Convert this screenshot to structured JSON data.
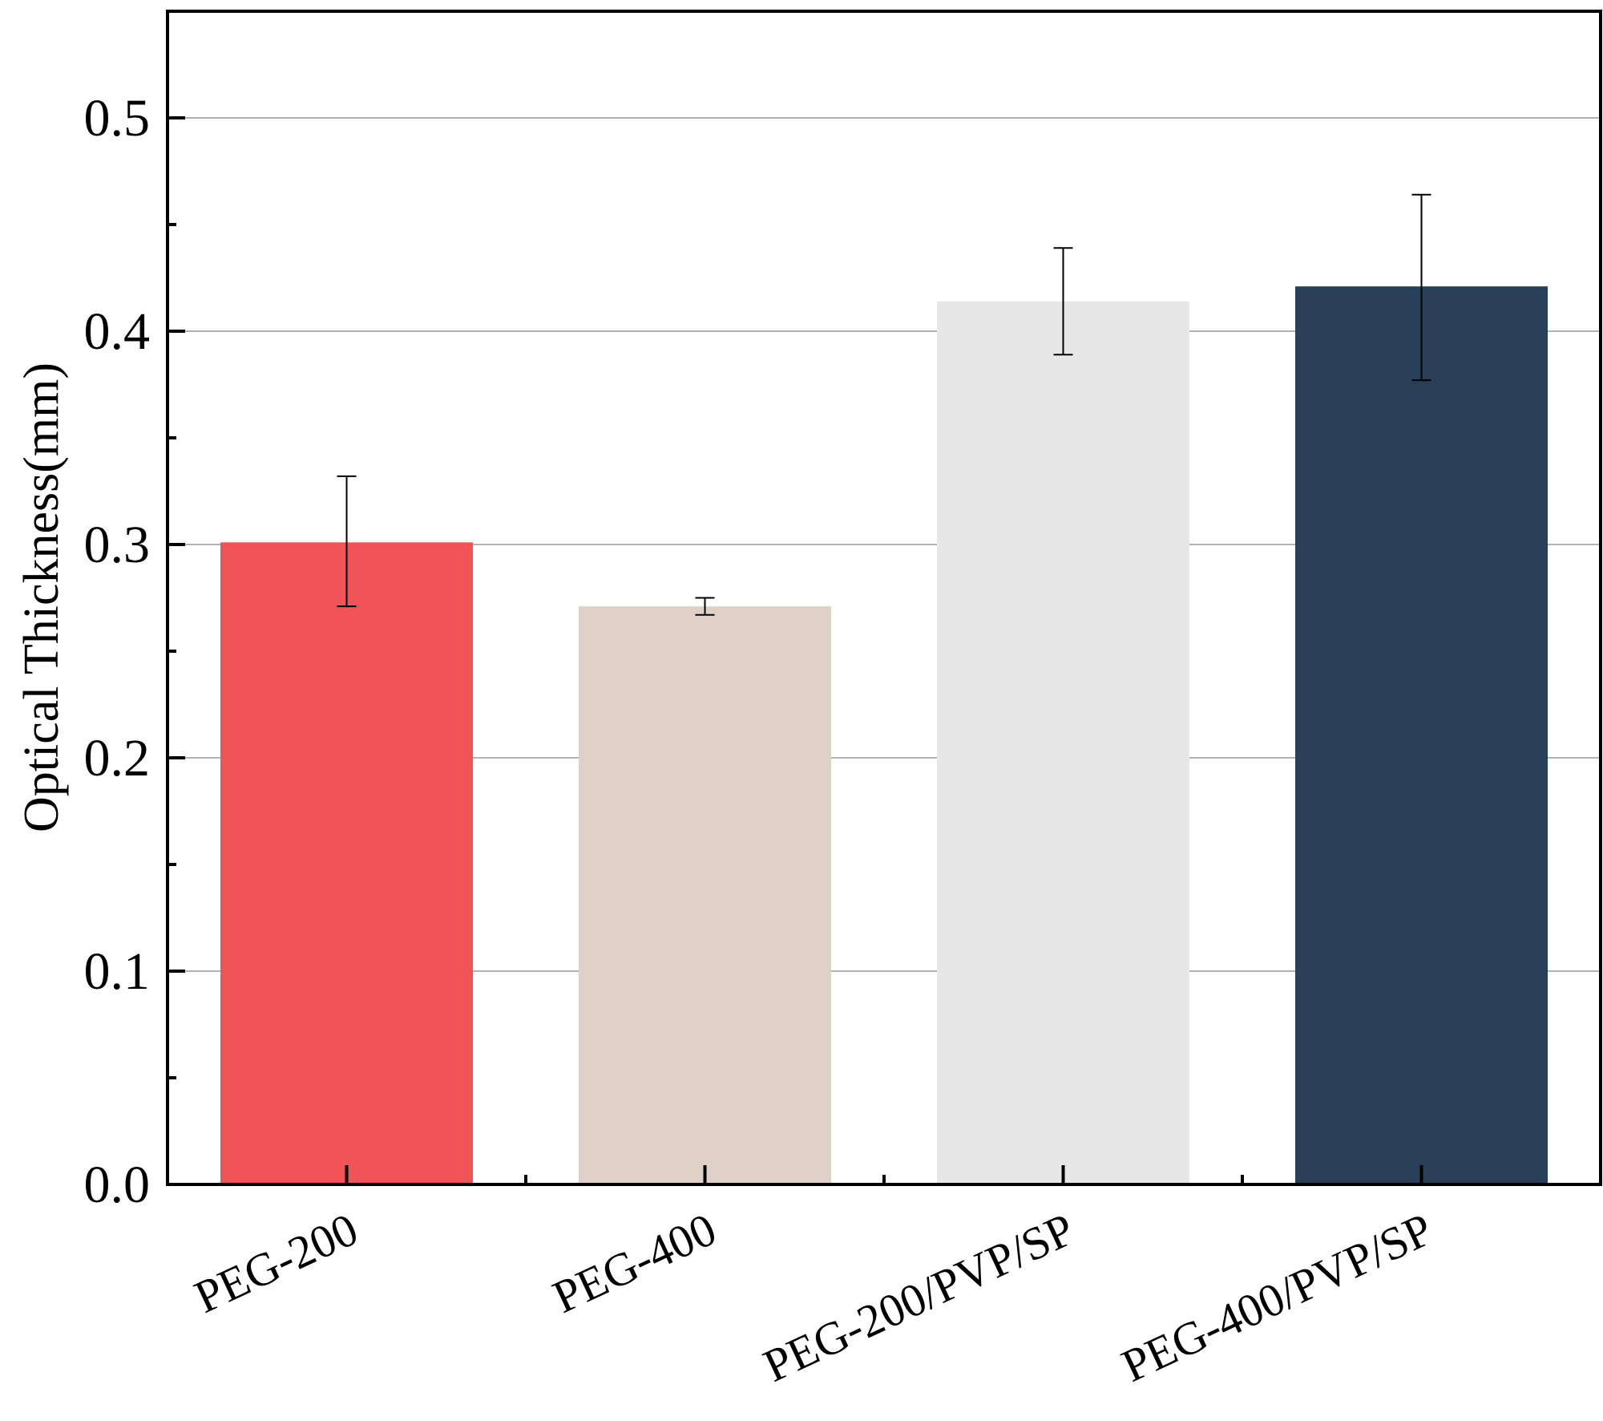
{
  "chart_data": {
    "type": "bar",
    "title": "",
    "xlabel": "",
    "ylabel": "Optical Thickness(mm)",
    "ylim": [
      0,
      0.55
    ],
    "yticks": [
      0.0,
      0.1,
      0.2,
      0.3,
      0.4,
      0.5
    ],
    "ytick_labels": [
      "0.0",
      "0.1",
      "0.2",
      "0.3",
      "0.4",
      "0.5"
    ],
    "categories": [
      "PEG-200",
      "PEG-400",
      "PEG-200/PVP/SP",
      "PEG-400/PVP/SP"
    ],
    "values": [
      0.301,
      0.271,
      0.414,
      0.421
    ],
    "error_lower": [
      0.271,
      0.267,
      0.389,
      0.377
    ],
    "error_upper": [
      0.332,
      0.275,
      0.439,
      0.464
    ],
    "colors": [
      "#f05456",
      "#dfd0c8",
      "#e7e7e7",
      "#283f57"
    ],
    "grid": "horizontal",
    "legend": "none"
  }
}
